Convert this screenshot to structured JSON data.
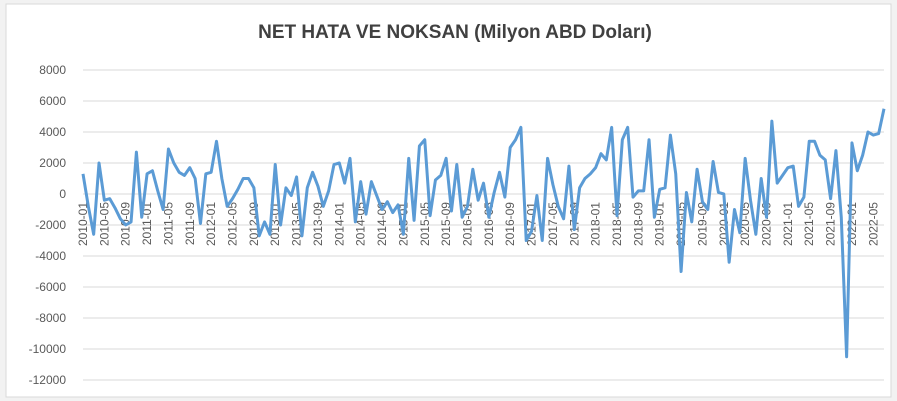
{
  "chart_data": {
    "type": "line",
    "title": "NET HATA VE NOKSAN (Milyon ABD Doları)",
    "categories": [
      "2010-01",
      null,
      null,
      null,
      "2010-05",
      null,
      null,
      null,
      "2010-09",
      null,
      null,
      null,
      "2011-01",
      null,
      null,
      null,
      "2011-05",
      null,
      null,
      null,
      "2011-09",
      null,
      null,
      null,
      "2012-01",
      null,
      null,
      null,
      "2012-05",
      null,
      null,
      null,
      "2012-09",
      null,
      null,
      null,
      "2013-01",
      null,
      null,
      null,
      "2013-05",
      null,
      null,
      null,
      "2013-09",
      null,
      null,
      null,
      "2014-01",
      null,
      null,
      null,
      "2014-05",
      null,
      null,
      null,
      "2014-09",
      null,
      null,
      null,
      "2015-01",
      null,
      null,
      null,
      "2015-05",
      null,
      null,
      null,
      "2015-09",
      null,
      null,
      null,
      "2016-01",
      null,
      null,
      null,
      "2016-05",
      null,
      null,
      null,
      "2016-09",
      null,
      null,
      null,
      "2017-01",
      null,
      null,
      null,
      "2017-05",
      null,
      null,
      null,
      "2017-09",
      null,
      null,
      null,
      "2018-01",
      null,
      null,
      null,
      "2018-05",
      null,
      null,
      null,
      "2018-09",
      null,
      null,
      null,
      "2019-01",
      null,
      null,
      null,
      "2019-05",
      null,
      null,
      null,
      "2019-09",
      null,
      null,
      null,
      "2020-01",
      null,
      null,
      null,
      "2020-05",
      null,
      null,
      null,
      "2020-09",
      null,
      null,
      null,
      "2021-01",
      null,
      null,
      null,
      "2021-05",
      null,
      null,
      null,
      "2021-09",
      null,
      null,
      null,
      "2022-01",
      null,
      null,
      null,
      "2022-05",
      null,
      null
    ],
    "series": [
      {
        "name": "Net Hata ve Noksan",
        "color": "#5b9bd5",
        "values": [
          1300,
          -800,
          -2600,
          2000,
          -400,
          -300,
          -900,
          -1600,
          -2000,
          -1800,
          2700,
          -1500,
          1300,
          1500,
          200,
          -1000,
          2900,
          2000,
          1400,
          1200,
          1700,
          1000,
          -1900,
          1300,
          1400,
          3400,
          1000,
          -800,
          -300,
          300,
          1000,
          1000,
          400,
          -2700,
          -1800,
          -2600,
          1900,
          -2000,
          400,
          -100,
          1100,
          -2700,
          400,
          1400,
          500,
          -800,
          200,
          1900,
          2000,
          700,
          2300,
          -1800,
          800,
          -1300,
          800,
          -100,
          -1000,
          -500,
          -1200,
          -700,
          -2600,
          2300,
          -1700,
          3100,
          3500,
          -1400,
          900,
          1200,
          2300,
          -1100,
          1900,
          -1500,
          -800,
          1600,
          -400,
          700,
          -1500,
          100,
          1400,
          -200,
          3000,
          3500,
          4300,
          -3000,
          -2400,
          -100,
          -3000,
          2300,
          600,
          -800,
          -1600,
          1800,
          -2300,
          400,
          1000,
          1300,
          1700,
          2600,
          2200,
          4300,
          -1400,
          3500,
          4300,
          -200,
          200,
          200,
          3500,
          -1500,
          300,
          400,
          3800,
          1300,
          -5000,
          100,
          -1800,
          1600,
          -500,
          -1000,
          2100,
          100,
          0,
          -4400,
          -1000,
          -2500,
          2300,
          -400,
          -2600,
          1000,
          -1500,
          4700,
          700,
          1200,
          1700,
          1800,
          -800,
          -200,
          3400,
          3400,
          2500,
          2200,
          -300,
          2800,
          -1500,
          -10500,
          3300,
          1500,
          2500,
          4000,
          3800,
          3900,
          5500
        ]
      }
    ],
    "ylim": [
      -12000,
      8000
    ],
    "yticks": [
      -12000,
      -10000,
      -8000,
      -6000,
      -4000,
      -2000,
      0,
      2000,
      4000,
      6000,
      8000
    ],
    "grid": true
  }
}
